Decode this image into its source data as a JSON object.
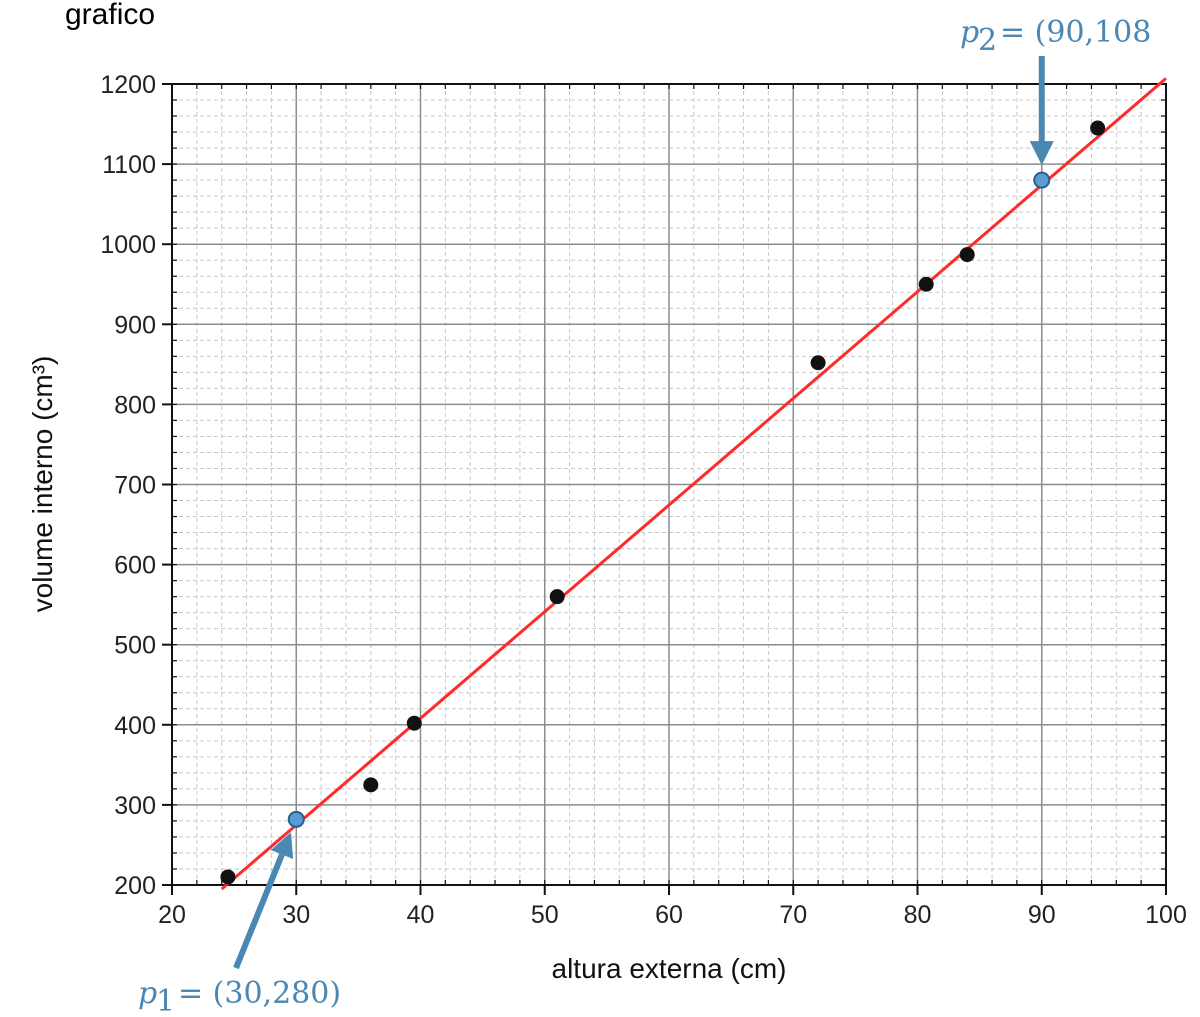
{
  "header_fragment": "grafico",
  "colors": {
    "fit_line": "#ff2a2a",
    "data_points": "#111111",
    "annotation": "#4a87b3",
    "grid_major": "#8c8c8c",
    "grid_minor": "#c8c8c8"
  },
  "chart_data": {
    "type": "scatter",
    "title": "",
    "xlabel": "altura externa (cm)",
    "ylabel": "volume interno (cm³)",
    "xlim": [
      20,
      100
    ],
    "ylim": [
      200,
      1200
    ],
    "xticks": [
      20,
      30,
      40,
      50,
      60,
      70,
      80,
      90,
      100
    ],
    "yticks": [
      200,
      300,
      400,
      500,
      600,
      700,
      800,
      900,
      1000,
      1100,
      1200
    ],
    "grid": true,
    "minor_grid": true,
    "series": [
      {
        "x": [
          24.5,
          36,
          39.5,
          51,
          72,
          80.7,
          84,
          94.5
        ],
        "y": [
          210,
          325,
          402,
          560,
          852,
          950,
          987,
          1145
        ]
      }
    ],
    "fit_line": {
      "x": [
        24,
        100
      ],
      "y": [
        195,
        1207
      ]
    },
    "annotations": [
      {
        "label_sub": "1",
        "text": "= (30,280)",
        "x": 30,
        "y": 282
      },
      {
        "label_sub": "2",
        "text": "= (90,108",
        "x": 90,
        "y": 1080
      }
    ]
  }
}
